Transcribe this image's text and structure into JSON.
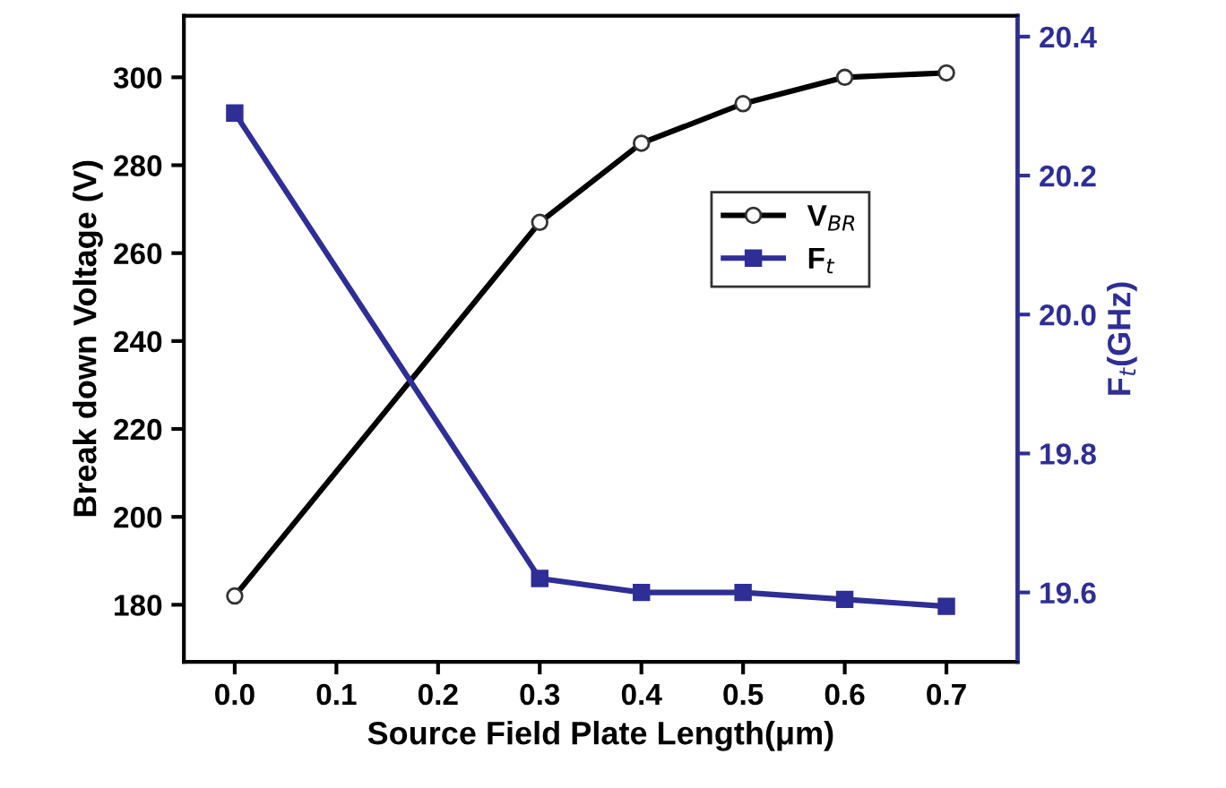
{
  "chart_data": {
    "type": "line",
    "xlabel": "Source Field Plate Length(μm)",
    "ylabel": "Break down Voltage (V)",
    "y2label": "F$_{t}$(GHz)",
    "x": [
      0.0,
      0.3,
      0.4,
      0.5,
      0.6,
      0.7
    ],
    "series": [
      {
        "name": "V$_{BR}$",
        "color": "#000000",
        "marker": "circle",
        "values": [
          182,
          267,
          285,
          294,
          300,
          301
        ]
      },
      {
        "name": "F$_{t}$",
        "color": "#2e2e96",
        "marker": "square",
        "axis": "y2",
        "values": [
          20.29,
          19.62,
          19.6,
          19.6,
          19.59,
          19.58
        ]
      }
    ],
    "xlim": [
      -0.05,
      0.77
    ],
    "xticks": [
      {
        "value": 0,
        "label": "0.0"
      },
      0.1,
      0.2,
      0.3,
      0.4,
      0.5,
      0.6,
      0.7
    ],
    "ylim": [
      167,
      314
    ],
    "yticks": [
      180,
      200,
      220,
      240,
      260,
      280,
      300
    ],
    "y2lim": [
      19.5,
      20.43
    ],
    "y2ticks": [
      19.6,
      19.8,
      {
        "value": 20,
        "label": "20.0"
      },
      20.2,
      20.4
    ],
    "legend": "top right",
    "grid": false
  }
}
